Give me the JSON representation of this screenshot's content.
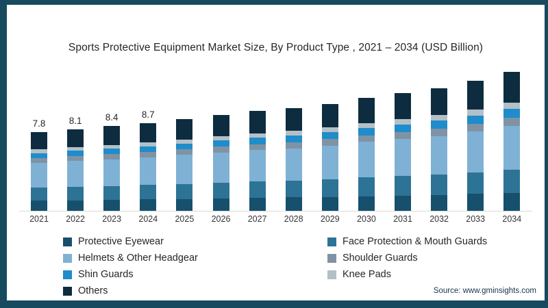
{
  "frame": {
    "border_color": "#174a5f",
    "background": "#ffffff",
    "axis_line_color": "#d9d9d9"
  },
  "title": "Sports Protective Equipment Market Size, By Product Type , 2021 – 2034 (USD Billion)",
  "source": "Source: www.gminsights.com",
  "chart_data": {
    "type": "bar",
    "stacked": true,
    "title": "Sports Protective Equipment Market Size, By Product Type , 2021 – 2034 (USD Billion)",
    "xlabel": "",
    "ylabel": "USD Billion",
    "grid": false,
    "legend_position": "bottom",
    "categories": [
      "2021",
      "2022",
      "2023",
      "2024",
      "2025",
      "2026",
      "2027",
      "2028",
      "2029",
      "2030",
      "2031",
      "2032",
      "2033",
      "2034"
    ],
    "series": [
      {
        "name": "Protective Eyewear",
        "color": "#16506c",
        "values": [
          1.01,
          1.05,
          1.09,
          1.13,
          1.18,
          1.24,
          1.29,
          1.33,
          1.38,
          1.46,
          1.52,
          1.59,
          1.68,
          1.79
        ]
      },
      {
        "name": "Face Protection & Mouth Guards",
        "color": "#2d7396",
        "values": [
          1.29,
          1.34,
          1.39,
          1.44,
          1.5,
          1.57,
          1.63,
          1.68,
          1.75,
          1.85,
          1.93,
          2.01,
          2.13,
          2.28
        ]
      },
      {
        "name": "Helmets & Other Headgear",
        "color": "#7fb1d4",
        "values": [
          2.46,
          2.55,
          2.65,
          2.74,
          2.87,
          2.99,
          3.12,
          3.21,
          3.34,
          3.53,
          3.69,
          3.84,
          4.06,
          4.35
        ]
      },
      {
        "name": "Shoulder Guards",
        "color": "#7f93a5",
        "values": [
          0.47,
          0.49,
          0.5,
          0.52,
          0.55,
          0.57,
          0.59,
          0.61,
          0.64,
          0.67,
          0.7,
          0.73,
          0.77,
          0.83
        ]
      },
      {
        "name": "Shin Guards",
        "color": "#1f8ccb",
        "values": [
          0.51,
          0.53,
          0.55,
          0.57,
          0.59,
          0.62,
          0.64,
          0.66,
          0.69,
          0.73,
          0.76,
          0.79,
          0.84,
          0.9
        ]
      },
      {
        "name": "Knee Pads",
        "color": "#b4c0c7",
        "values": [
          0.35,
          0.36,
          0.38,
          0.39,
          0.41,
          0.43,
          0.45,
          0.46,
          0.48,
          0.5,
          0.53,
          0.55,
          0.58,
          0.62
        ]
      },
      {
        "name": "Others",
        "color": "#0d2c3f",
        "values": [
          1.72,
          1.78,
          1.85,
          1.91,
          2.0,
          2.09,
          2.18,
          2.24,
          2.33,
          2.46,
          2.57,
          2.68,
          2.84,
          3.04
        ]
      }
    ],
    "totals": [
      7.8,
      8.1,
      8.4,
      8.7,
      9.1,
      9.5,
      9.9,
      10.2,
      10.6,
      11.2,
      11.7,
      12.2,
      12.9,
      13.8
    ],
    "value_labels": [
      "7.8",
      "8.1",
      "8.4",
      "8.7",
      "",
      "",
      "",
      "",
      "",
      "",
      "",
      "",
      "",
      ""
    ]
  },
  "legend": {
    "left_column_series": [
      0,
      2,
      4,
      6
    ],
    "right_column_series": [
      1,
      3,
      5
    ]
  }
}
